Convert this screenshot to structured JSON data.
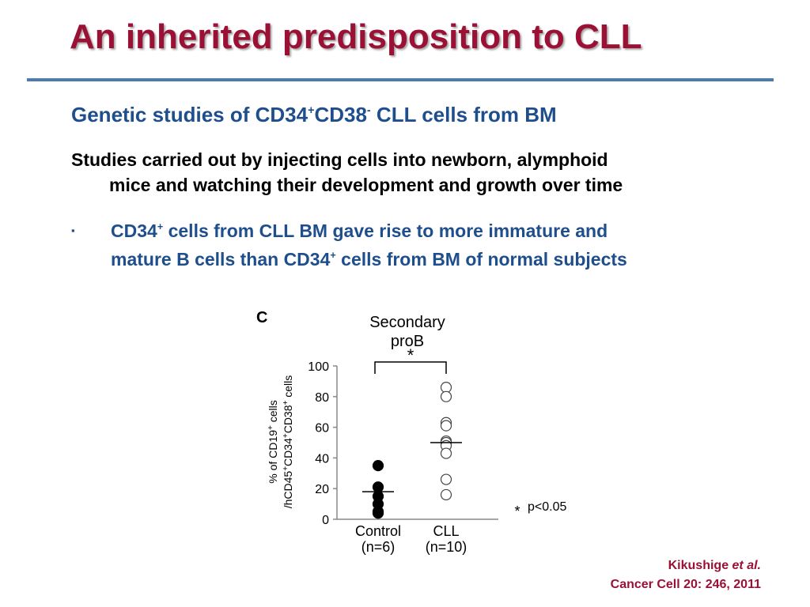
{
  "slide": {
    "title": "An inherited predisposition to CLL",
    "subtitle": {
      "part1": "Genetic studies of CD34",
      "sup1": "+",
      "part2": "CD38",
      "sup2": "-",
      "part3": " CLL cells from BM"
    },
    "studies": {
      "line1": "Studies carried out by injecting cells into newborn, alymphoid",
      "line2": "mice and watching their development and growth over time"
    },
    "bullet": {
      "marker": "▪",
      "p1": "CD34",
      "sup1": "+",
      "p2": " cells from CLL BM gave rise to more immature and",
      "p3": "mature B cells than CD34",
      "sup2": "+",
      "p4": " cells from BM of normal subjects"
    },
    "citation": {
      "author": "Kikushige ",
      "etal": "et al.",
      "journal": "Cancer Cell 20: 246, 2011"
    }
  },
  "chart_data": {
    "type": "scatter",
    "panel_label": "C",
    "title_line1": "Secondary",
    "title_line2": "proB",
    "ylabel_line1": "% of CD19+ cells",
    "ylabel_line2": "/hCD45+CD34+CD38+ cells",
    "ylim": [
      0,
      100
    ],
    "yticks": [
      0,
      20,
      40,
      60,
      80,
      100
    ],
    "categories": [
      {
        "name": "Control",
        "n_label": "(n=6)"
      },
      {
        "name": "CLL",
        "n_label": "(n=10)"
      }
    ],
    "series": [
      {
        "category": "Control",
        "marker": "filled",
        "values": [
          35,
          21,
          15,
          10,
          5,
          4
        ],
        "mean": 18
      },
      {
        "category": "CLL",
        "marker": "open",
        "values": [
          86,
          80,
          63,
          61,
          51,
          50,
          48,
          43,
          26,
          16
        ],
        "mean": 50
      }
    ],
    "significance": {
      "marker": "*",
      "legend": "p<0.05"
    }
  }
}
